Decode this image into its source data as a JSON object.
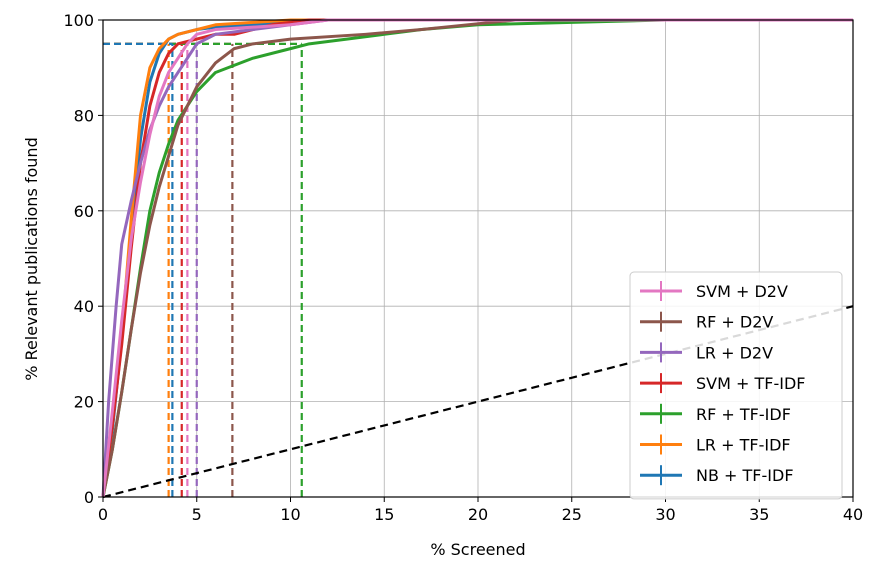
{
  "chart_data": {
    "type": "line",
    "title": "",
    "xlabel": "% Screened",
    "ylabel": "% Relevant publications found",
    "xlim": [
      0,
      40
    ],
    "ylim": [
      0,
      100
    ],
    "xticks": [
      "0",
      "5",
      "10",
      "15",
      "20",
      "25",
      "30",
      "35",
      "40"
    ],
    "yticks": [
      "0",
      "20",
      "40",
      "60",
      "80",
      "100"
    ],
    "grid": true,
    "legend_position": "lower-right",
    "series": [
      {
        "name": "SVM + D2V",
        "color": "#e377c2",
        "x": [
          0,
          0.5,
          1,
          1.5,
          2,
          2.5,
          3,
          3.5,
          4,
          4.5,
          5,
          6,
          8,
          10,
          12,
          40
        ],
        "y": [
          0,
          18,
          37,
          54,
          66,
          76,
          84,
          89,
          92,
          95,
          97,
          98,
          98.5,
          99,
          100,
          100
        ],
        "threshold": {
          "x": 4.5,
          "y": 95
        }
      },
      {
        "name": "RF + D2V",
        "color": "#8c564b",
        "x": [
          0,
          0.5,
          1,
          1.5,
          2,
          2.5,
          3,
          4,
          5,
          6,
          7,
          8,
          10,
          14,
          17,
          22,
          40
        ],
        "y": [
          0,
          10,
          22,
          35,
          47,
          57,
          65,
          78,
          86,
          91,
          94,
          95,
          96,
          97,
          98,
          100,
          100
        ],
        "threshold": {
          "x": 6.9,
          "y": 95
        }
      },
      {
        "name": "LR + D2V",
        "color": "#9467bd",
        "x": [
          0,
          0.3,
          0.7,
          1,
          1.5,
          2,
          2.5,
          3,
          3.5,
          4,
          4.5,
          5,
          6,
          8,
          12,
          40
        ],
        "y": [
          0,
          20,
          40,
          53,
          62,
          70,
          77,
          82,
          86,
          89,
          92,
          95,
          97,
          98,
          100,
          100
        ],
        "threshold": {
          "x": 5.0,
          "y": 95
        }
      },
      {
        "name": "SVM + TF-IDF",
        "color": "#d62728",
        "x": [
          0,
          0.5,
          1,
          1.5,
          2,
          2.5,
          3,
          3.5,
          4,
          5,
          6,
          7,
          8,
          9,
          10,
          11,
          40
        ],
        "y": [
          0,
          15,
          32,
          52,
          70,
          82,
          89,
          93,
          95,
          96,
          97,
          97,
          98,
          99,
          99.5,
          100,
          100
        ],
        "threshold": {
          "x": 4.2,
          "y": 95
        }
      },
      {
        "name": "RF + TF-IDF",
        "color": "#2ca02c",
        "x": [
          0,
          0.5,
          1,
          1.5,
          2,
          2.5,
          3,
          3.5,
          4,
          5,
          6,
          8,
          10,
          11,
          13,
          15,
          17,
          20,
          25,
          30,
          40
        ],
        "y": [
          0,
          10,
          22,
          35,
          48,
          60,
          68,
          74,
          79,
          85,
          89,
          92,
          94,
          95,
          96,
          97,
          98,
          99,
          99.5,
          100,
          100
        ],
        "threshold": {
          "x": 10.6,
          "y": 95
        }
      },
      {
        "name": "LR + TF-IDF",
        "color": "#ff7f0e",
        "x": [
          0,
          0.5,
          1,
          1.5,
          2,
          2.5,
          3,
          3.5,
          4,
          5,
          6,
          8,
          10,
          40
        ],
        "y": [
          0,
          15,
          34,
          58,
          80,
          90,
          94,
          96,
          97,
          98,
          99,
          99.5,
          100,
          100
        ],
        "threshold": {
          "x": 3.5,
          "y": 95
        }
      },
      {
        "name": "NB + TF-IDF",
        "color": "#1f77b4",
        "x": [
          0,
          0.5,
          1,
          1.5,
          2,
          2.5,
          3,
          3.5,
          4,
          5,
          6,
          8,
          10,
          11,
          40
        ],
        "y": [
          0,
          14,
          33,
          55,
          75,
          87,
          93,
          96,
          97,
          98,
          98.5,
          99,
          99.5,
          100,
          100
        ],
        "threshold": {
          "x": 3.7,
          "y": 95
        }
      },
      {
        "name": "",
        "color": "#000000",
        "style": "dashed",
        "x": [
          0,
          40
        ],
        "y": [
          0,
          40
        ]
      }
    ]
  }
}
